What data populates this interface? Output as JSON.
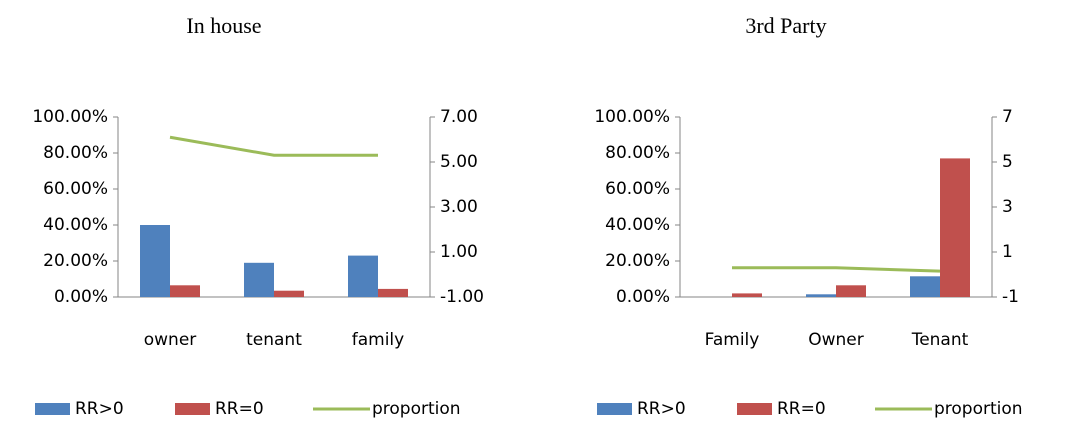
{
  "chart_data": [
    {
      "type": "bar",
      "title": "In house",
      "categories": [
        "owner",
        "tenant",
        "family"
      ],
      "series": [
        {
          "name": "RR>0",
          "color": "#4f81bd",
          "values": [
            40,
            19,
            23
          ]
        },
        {
          "name": "RR=0",
          "color": "#c0504d",
          "values": [
            6.5,
            3.5,
            4.5
          ]
        },
        {
          "name": "proportion",
          "color": "#9bbb59",
          "type": "line",
          "axis": "y2",
          "values": [
            6.1,
            5.3,
            5.3
          ]
        }
      ],
      "ylim": [
        0,
        100
      ],
      "yticks": [
        {
          "value": 0,
          "label": "0.00%"
        },
        {
          "value": 20,
          "label": "20.00%"
        },
        {
          "value": 40,
          "label": "40.00%"
        },
        {
          "value": 60,
          "label": "60.00%"
        },
        {
          "value": 80,
          "label": "80.00%"
        },
        {
          "value": 100,
          "label": "100.00%"
        }
      ],
      "y2lim": [
        -1,
        7
      ],
      "y2ticks": [
        {
          "value": -1,
          "label": "-1.00"
        },
        {
          "value": 1,
          "label": "1.00"
        },
        {
          "value": 3,
          "label": "3.00"
        },
        {
          "value": 5,
          "label": "5.00"
        },
        {
          "value": 7,
          "label": "7.00"
        }
      ],
      "grid": false,
      "legend": "bottom"
    },
    {
      "type": "bar",
      "title": "3rd Party",
      "categories": [
        "Family",
        "Owner",
        "Tenant"
      ],
      "series": [
        {
          "name": "RR>0",
          "color": "#4f81bd",
          "values": [
            0,
            1.5,
            11.5
          ]
        },
        {
          "name": "RR=0",
          "color": "#c0504d",
          "values": [
            2,
            6.5,
            77
          ]
        },
        {
          "name": "proportion",
          "color": "#9bbb59",
          "type": "line",
          "axis": "y2",
          "values": [
            0.3,
            0.3,
            0.15
          ]
        }
      ],
      "ylim": [
        0,
        100
      ],
      "yticks": [
        {
          "value": 0,
          "label": "0.00%"
        },
        {
          "value": 20,
          "label": "20.00%"
        },
        {
          "value": 40,
          "label": "40.00%"
        },
        {
          "value": 60,
          "label": "60.00%"
        },
        {
          "value": 80,
          "label": "80.00%"
        },
        {
          "value": 100,
          "label": "100.00%"
        }
      ],
      "y2lim": [
        -1,
        7
      ],
      "y2ticks": [
        -1,
        1,
        3,
        5,
        7
      ],
      "grid": false,
      "legend": "bottom"
    }
  ]
}
